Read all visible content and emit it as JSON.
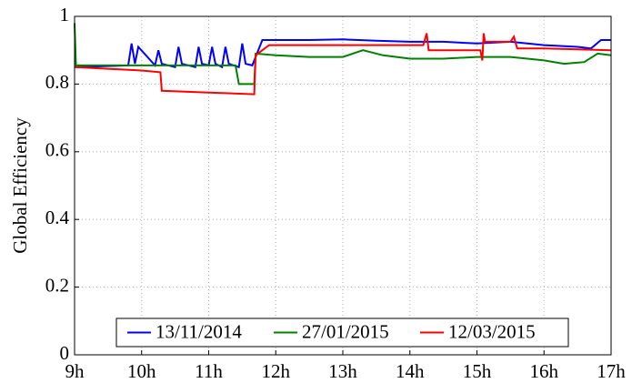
{
  "chart_data": {
    "type": "line",
    "ylabel": "Global Efficiency",
    "xlim": [
      9,
      17
    ],
    "xticks": [
      {
        "value": 9,
        "label": "9h"
      },
      {
        "value": 10,
        "label": "10h"
      },
      {
        "value": 11,
        "label": "11h"
      },
      {
        "value": 12,
        "label": "12h"
      },
      {
        "value": 13,
        "label": "13h"
      },
      {
        "value": 14,
        "label": "14h"
      },
      {
        "value": 15,
        "label": "15h"
      },
      {
        "value": 16,
        "label": "16h"
      },
      {
        "value": 17,
        "label": "17h"
      }
    ],
    "ylim": [
      0,
      1
    ],
    "yticks": [
      0,
      0.2,
      0.4,
      0.6,
      0.8,
      1
    ],
    "grid": true,
    "legend": "bottom",
    "series": [
      {
        "name": "13/11/2014",
        "color": "#0000ff",
        "x": [
          9,
          9.8,
          9.85,
          9.9,
          9.95,
          10.2,
          10.25,
          10.3,
          10.5,
          10.55,
          10.6,
          10.8,
          10.85,
          10.9,
          11.0,
          11.05,
          11.1,
          11.2,
          11.25,
          11.3,
          11.45,
          11.5,
          11.55,
          11.65,
          11.7,
          11.8,
          12.5,
          13,
          13.5,
          14,
          14.5,
          15,
          15.5,
          16,
          16.5,
          16.7,
          16.85,
          17
        ],
        "values": [
          0.85,
          0.855,
          0.92,
          0.86,
          0.91,
          0.855,
          0.9,
          0.86,
          0.85,
          0.91,
          0.86,
          0.85,
          0.91,
          0.86,
          0.855,
          0.91,
          0.86,
          0.85,
          0.91,
          0.86,
          0.85,
          0.92,
          0.86,
          0.855,
          0.88,
          0.93,
          0.93,
          0.932,
          0.928,
          0.925,
          0.925,
          0.92,
          0.925,
          0.915,
          0.91,
          0.905,
          0.93,
          0.93
        ]
      },
      {
        "name": "27/01/2015",
        "color": "#008000",
        "x": [
          9,
          9.02,
          9.5,
          10,
          11,
          11.4,
          11.45,
          11.68,
          11.7,
          12,
          12.5,
          13,
          13.3,
          13.6,
          14,
          14.5,
          15,
          15.5,
          16,
          16.3,
          16.6,
          16.8,
          17
        ],
        "values": [
          0.98,
          0.855,
          0.855,
          0.855,
          0.855,
          0.855,
          0.8,
          0.8,
          0.89,
          0.885,
          0.88,
          0.88,
          0.9,
          0.885,
          0.875,
          0.875,
          0.88,
          0.88,
          0.87,
          0.86,
          0.865,
          0.89,
          0.885
        ]
      },
      {
        "name": "12/03/2015",
        "color": "#ff0000",
        "x": [
          9,
          10,
          10.28,
          10.3,
          11,
          11.68,
          11.7,
          11.9,
          13,
          14.2,
          14.25,
          14.28,
          15.05,
          15.08,
          15.1,
          15.12,
          15.2,
          15.5,
          15.55,
          15.6,
          16,
          17
        ],
        "values": [
          0.85,
          0.84,
          0.835,
          0.78,
          0.775,
          0.77,
          0.885,
          0.915,
          0.915,
          0.915,
          0.95,
          0.9,
          0.9,
          0.87,
          0.95,
          0.925,
          0.925,
          0.925,
          0.94,
          0.905,
          0.905,
          0.9
        ]
      }
    ]
  }
}
